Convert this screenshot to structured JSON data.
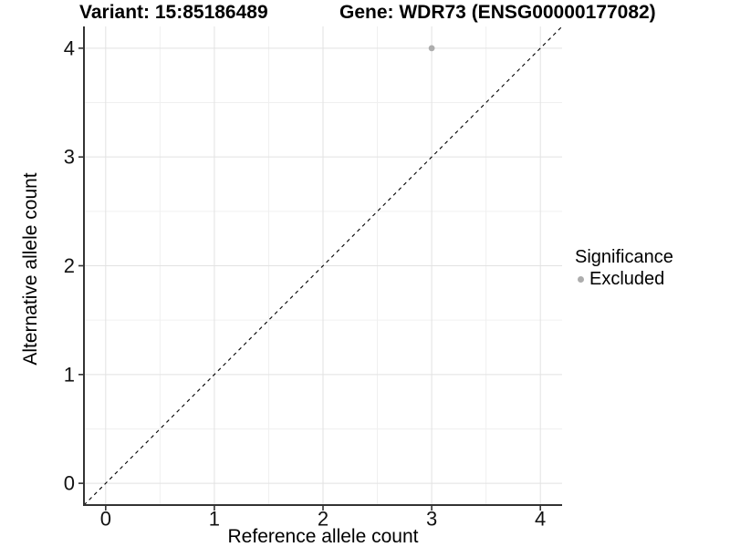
{
  "chart_data": {
    "type": "scatter",
    "titles": {
      "variant": "Variant: 15:85186489",
      "gene": "Gene: WDR73 (ENSG00000177082)"
    },
    "xlabel": "Reference allele count",
    "ylabel": "Alternative allele count",
    "xlim": [
      -0.2,
      4.2
    ],
    "ylim": [
      -0.2,
      4.2
    ],
    "xticks": [
      0,
      1,
      2,
      3,
      4
    ],
    "yticks": [
      0,
      1,
      2,
      3,
      4
    ],
    "minor_ticks_x": [
      0.5,
      1.5,
      2.5,
      3.5
    ],
    "minor_ticks_y": [
      0.5,
      1.5,
      2.5,
      3.5
    ],
    "grid": {
      "major_color": "#e2e2e2",
      "minor_color": "#f0f0f0"
    },
    "axis_color": "#333333",
    "series": [
      {
        "name": "Excluded",
        "color": "#adadad",
        "marker": "circle",
        "points": [
          {
            "x": 3,
            "y": 4
          }
        ]
      }
    ],
    "reference_line": {
      "type": "identity",
      "slope": 1,
      "intercept": 0,
      "style": "dashed",
      "color": "#000000"
    },
    "legend": {
      "title": "Significance",
      "position": "right",
      "items": [
        {
          "label": "Excluded",
          "color": "#adadad"
        }
      ]
    }
  }
}
